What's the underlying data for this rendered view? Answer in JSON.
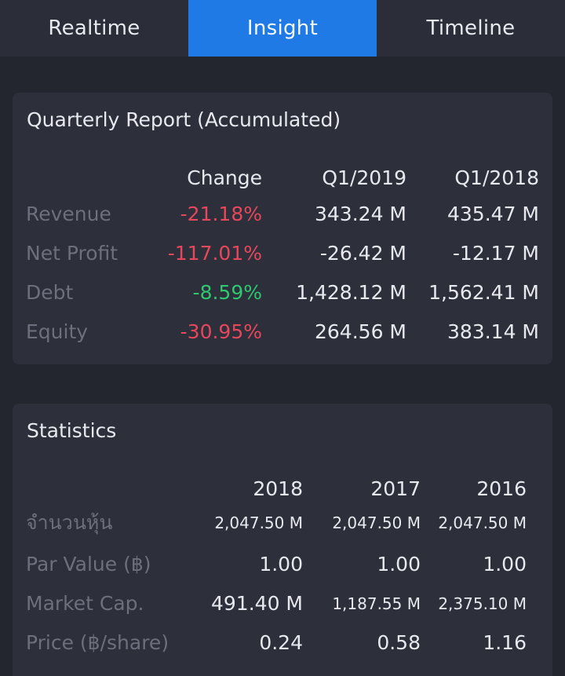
{
  "tabs": [
    {
      "label": "Realtime"
    },
    {
      "label": "Insight"
    },
    {
      "label": "Timeline"
    }
  ],
  "quarterly": {
    "title": "Quarterly Report (Accumulated)",
    "headers": [
      "Change",
      "Q1/2019",
      "Q1/2018"
    ],
    "rows": [
      {
        "label": "Revenue",
        "change": "-21.18%",
        "q1_2019": "343.24 M",
        "q1_2018": "435.47 M"
      },
      {
        "label": "Net Profit",
        "change": "-117.01%",
        "q1_2019": "-26.42 M",
        "q1_2018": "-12.17 M"
      },
      {
        "label": "Debt",
        "change": "-8.59%",
        "q1_2019": "1,428.12 M",
        "q1_2018": "1,562.41 M"
      },
      {
        "label": "Equity",
        "change": "-30.95%",
        "q1_2019": "264.56 M",
        "q1_2018": "383.14 M"
      }
    ]
  },
  "statistics": {
    "title": "Statistics",
    "headers": [
      "2018",
      "2017",
      "2016"
    ],
    "rows": [
      {
        "label": "จำนวนหุ้น",
        "y2018": "2,047.50 M",
        "y2017": "2,047.50 M",
        "y2016": "2,047.50 M"
      },
      {
        "label": "Par Value (฿)",
        "y2018": "1.00",
        "y2017": "1.00",
        "y2016": "1.00"
      },
      {
        "label": "Market Cap.",
        "y2018": "491.40 M",
        "y2017": "1,187.55 M",
        "y2016": "2,375.10 M"
      },
      {
        "label": "Price (฿/share)",
        "y2018": "0.24",
        "y2017": "0.58",
        "y2016": "1.16"
      }
    ]
  },
  "colors": {
    "background": "#23252f",
    "card": "#2d2f3b",
    "active_tab": "#1f7ae6",
    "negative": "#e5475c",
    "positive": "#2ec870",
    "label": "#6c6f7c"
  }
}
